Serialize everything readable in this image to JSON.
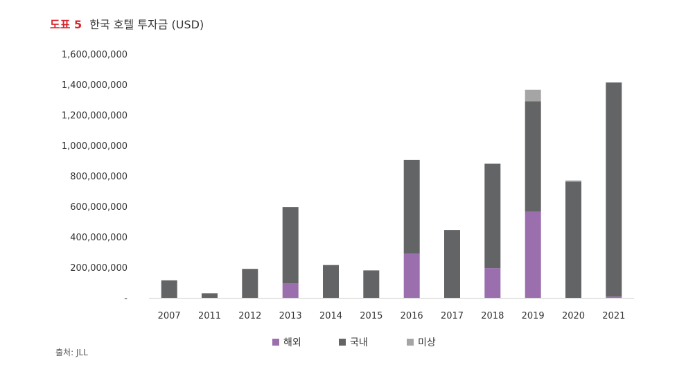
{
  "figure": {
    "number": "도표 5",
    "title": "한국 호텔 투자금 (USD)"
  },
  "source": "출처: JLL",
  "colors": {
    "figure_number": "#d9252c",
    "axis": "#cccccc"
  },
  "chart_data": {
    "type": "bar",
    "stacked": true,
    "title": "한국 호텔 투자금 (USD)",
    "categories": [
      "2007",
      "2011",
      "2012",
      "2013",
      "2014",
      "2015",
      "2016",
      "2017",
      "2018",
      "2019",
      "2020",
      "2021"
    ],
    "series": [
      {
        "name": "해외",
        "color": "#9b6fae",
        "values": [
          0,
          0,
          0,
          95000000,
          0,
          0,
          290000000,
          0,
          195000000,
          565000000,
          0,
          8000000
        ]
      },
      {
        "name": "국내",
        "color": "#636466",
        "values": [
          115000000,
          30000000,
          190000000,
          500000000,
          215000000,
          180000000,
          615000000,
          445000000,
          685000000,
          725000000,
          762000000,
          1405000000
        ]
      },
      {
        "name": "미상",
        "color": "#a5a5a5",
        "values": [
          0,
          0,
          0,
          0,
          0,
          0,
          0,
          0,
          0,
          75000000,
          8000000,
          0
        ]
      }
    ],
    "ylim": [
      0,
      1600000000
    ],
    "yticks": [
      0,
      200000000,
      400000000,
      600000000,
      800000000,
      1000000000,
      1200000000,
      1400000000,
      1600000000
    ],
    "ytick_labels": [
      "-",
      "200,000,000",
      "400,000,000",
      "600,000,000",
      "800,000,000",
      "1,000,000,000",
      "1,200,000,000",
      "1,400,000,000",
      "1,600,000,000"
    ],
    "xlabel": "",
    "ylabel": "",
    "grid": false,
    "legend_position": "bottom"
  }
}
